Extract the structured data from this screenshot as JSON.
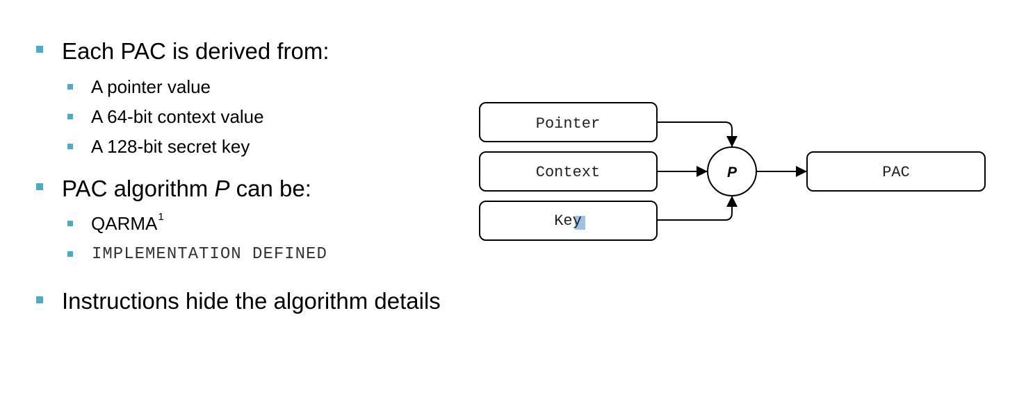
{
  "bullets": {
    "item1": {
      "text": "Each PAC is derived from:",
      "subitems": [
        "A pointer value",
        "A 64-bit context value",
        "A 128-bit secret key"
      ]
    },
    "item2": {
      "text_before": "PAC algorithm ",
      "text_italic": "P",
      "text_after": " can be:",
      "subitems": {
        "qarma": "QARMA",
        "qarma_footnote": "1",
        "impl_defined": "IMPLEMENTATION DEFINED"
      }
    },
    "item3": {
      "text": "Instructions hide the algorithm details"
    }
  },
  "diagram": {
    "inputs": {
      "pointer": "Pointer",
      "context": "Context",
      "key": "Key"
    },
    "function_label": "P",
    "output": "PAC",
    "colors": {
      "bullet": "#4bacc6",
      "selection_highlight": "#9cc2e5"
    }
  }
}
